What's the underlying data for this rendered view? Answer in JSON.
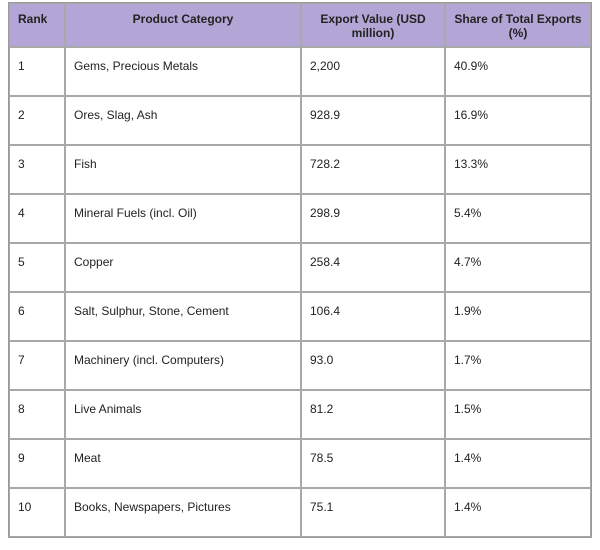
{
  "table": {
    "header": [
      "Rank",
      "Product Category",
      "Export Value (USD million)",
      "Share of Total Exports (%)"
    ],
    "rows": [
      [
        "1",
        "Gems, Precious Metals",
        "2,200",
        "40.9%"
      ],
      [
        "2",
        "Ores, Slag, Ash",
        "928.9",
        "16.9%"
      ],
      [
        "3",
        "Fish",
        "728.2",
        "13.3%"
      ],
      [
        "4",
        "Mineral Fuels (incl. Oil)",
        "298.9",
        "5.4%"
      ],
      [
        "5",
        "Copper",
        "258.4",
        "4.7%"
      ],
      [
        "6",
        "Salt, Sulphur, Stone, Cement",
        "106.4",
        "1.9%"
      ],
      [
        "7",
        "Machinery (incl. Computers)",
        "93.0",
        "1.7%"
      ],
      [
        "8",
        "Live Animals",
        "81.2",
        "1.5%"
      ],
      [
        "9",
        "Meat",
        "78.5",
        "1.4%"
      ],
      [
        "10",
        "Books, Newspapers, Pictures",
        "75.1",
        "1.4%"
      ]
    ]
  }
}
